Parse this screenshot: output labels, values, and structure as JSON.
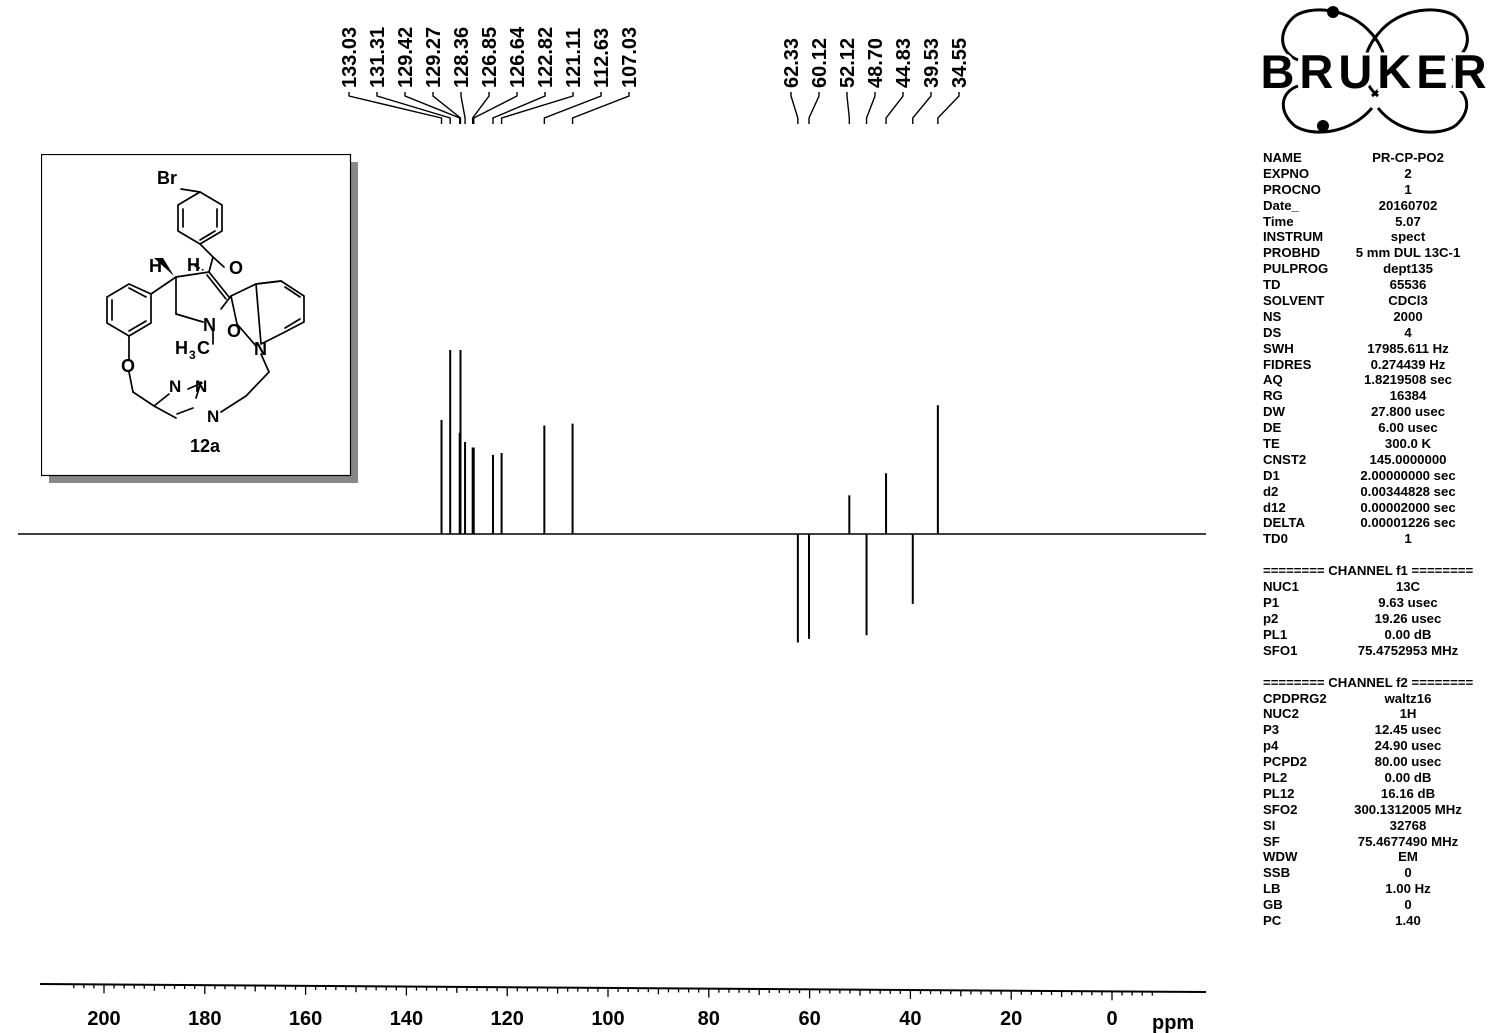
{
  "chart_data": {
    "type": "scatter",
    "title": "",
    "xlabel": "ppm",
    "ylabel": "",
    "xlim": [
      210,
      -8
    ],
    "x_ticks": [
      "200",
      "180",
      "160",
      "140",
      "120",
      "100",
      "80",
      "60",
      "40",
      "20",
      "0"
    ],
    "x_tick_values": [
      200,
      180,
      160,
      140,
      120,
      100,
      80,
      60,
      40,
      20,
      0
    ],
    "peak_labels": [
      "133.03",
      "131.31",
      "129.42",
      "129.27",
      "128.36",
      "126.85",
      "126.64",
      "122.82",
      "121.11",
      "112.63",
      "107.03",
      "62.33",
      "60.12",
      "52.12",
      "48.70",
      "44.83",
      "39.53",
      "34.55"
    ],
    "peaks": [
      {
        "ppm": 133.03,
        "intensity": 0.62
      },
      {
        "ppm": 131.31,
        "intensity": 1.0
      },
      {
        "ppm": 129.42,
        "intensity": 0.55
      },
      {
        "ppm": 129.27,
        "intensity": 1.0
      },
      {
        "ppm": 128.36,
        "intensity": 0.5
      },
      {
        "ppm": 126.85,
        "intensity": 0.47
      },
      {
        "ppm": 126.64,
        "intensity": 0.47
      },
      {
        "ppm": 122.82,
        "intensity": 0.43
      },
      {
        "ppm": 121.11,
        "intensity": 0.44
      },
      {
        "ppm": 112.63,
        "intensity": 0.59
      },
      {
        "ppm": 107.03,
        "intensity": 0.6
      },
      {
        "ppm": 62.33,
        "intensity": -0.59
      },
      {
        "ppm": 60.12,
        "intensity": -0.57
      },
      {
        "ppm": 52.12,
        "intensity": 0.21
      },
      {
        "ppm": 48.7,
        "intensity": -0.55
      },
      {
        "ppm": 44.83,
        "intensity": 0.33
      },
      {
        "ppm": 39.53,
        "intensity": -0.38
      },
      {
        "ppm": 34.55,
        "intensity": 0.7
      }
    ]
  },
  "logo": {
    "text": "BRUKER"
  },
  "structure": {
    "compound_label": "12a",
    "atoms": {
      "br": "Br",
      "o_carbonyl": "O",
      "o_amide": "O",
      "o_ether": "O",
      "n_amine": "N",
      "n_indole": "N",
      "n1": "N",
      "n2": "N",
      "n3": "N",
      "h1": "H",
      "h2": "H",
      "methyl": "H",
      "methyl_sub": "3",
      "methyl_c": "C"
    }
  },
  "params": {
    "group1": [
      {
        "k": "NAME",
        "v": "PR-CP-PO2"
      },
      {
        "k": "EXPNO",
        "v": "2"
      },
      {
        "k": "PROCNO",
        "v": "1"
      },
      {
        "k": "Date_",
        "v": "20160702"
      },
      {
        "k": "Time",
        "v": "5.07"
      },
      {
        "k": "INSTRUM",
        "v": "spect"
      },
      {
        "k": "PROBHD",
        "v": "5 mm DUL 13C-1"
      },
      {
        "k": "PULPROG",
        "v": "dept135"
      },
      {
        "k": "TD",
        "v": "65536"
      },
      {
        "k": "SOLVENT",
        "v": "CDCl3"
      },
      {
        "k": "NS",
        "v": "2000"
      },
      {
        "k": "DS",
        "v": "4"
      },
      {
        "k": "SWH",
        "v": "17985.611 Hz"
      },
      {
        "k": "FIDRES",
        "v": "0.274439 Hz"
      },
      {
        "k": "AQ",
        "v": "1.8219508 sec"
      },
      {
        "k": "RG",
        "v": "16384"
      },
      {
        "k": "DW",
        "v": "27.800 usec"
      },
      {
        "k": "DE",
        "v": "6.00 usec"
      },
      {
        "k": "TE",
        "v": "300.0 K"
      },
      {
        "k": "CNST2",
        "v": "145.0000000"
      },
      {
        "k": "D1",
        "v": "2.00000000 sec"
      },
      {
        "k": "d2",
        "v": "0.00344828 sec"
      },
      {
        "k": "d12",
        "v": "0.00002000 sec"
      },
      {
        "k": "DELTA",
        "v": "0.00001226 sec"
      },
      {
        "k": "TD0",
        "v": "1"
      }
    ],
    "channel1_header": "======== CHANNEL f1 ========",
    "group2": [
      {
        "k": "NUC1",
        "v": "13C"
      },
      {
        "k": "P1",
        "v": "9.63 usec"
      },
      {
        "k": "p2",
        "v": "19.26 usec"
      },
      {
        "k": "PL1",
        "v": "0.00 dB"
      },
      {
        "k": "SFO1",
        "v": "75.4752953 MHz"
      }
    ],
    "channel2_header": "======== CHANNEL f2 ========",
    "group3": [
      {
        "k": "CPDPRG2",
        "v": "waltz16"
      },
      {
        "k": "NUC2",
        "v": "1H"
      },
      {
        "k": "P3",
        "v": "12.45 usec"
      },
      {
        "k": "p4",
        "v": "24.90 usec"
      },
      {
        "k": "PCPD2",
        "v": "80.00 usec"
      },
      {
        "k": "PL2",
        "v": "0.00 dB"
      },
      {
        "k": "PL12",
        "v": "16.16 dB"
      },
      {
        "k": "SFO2",
        "v": "300.1312005 MHz"
      },
      {
        "k": "SI",
        "v": "32768"
      },
      {
        "k": "SF",
        "v": "75.4677490 MHz"
      },
      {
        "k": "WDW",
        "v": "EM"
      },
      {
        "k": "SSB",
        "v": "0"
      },
      {
        "k": "LB",
        "v": "1.00 Hz"
      },
      {
        "k": "GB",
        "v": "0"
      },
      {
        "k": "PC",
        "v": "1.40"
      }
    ]
  }
}
